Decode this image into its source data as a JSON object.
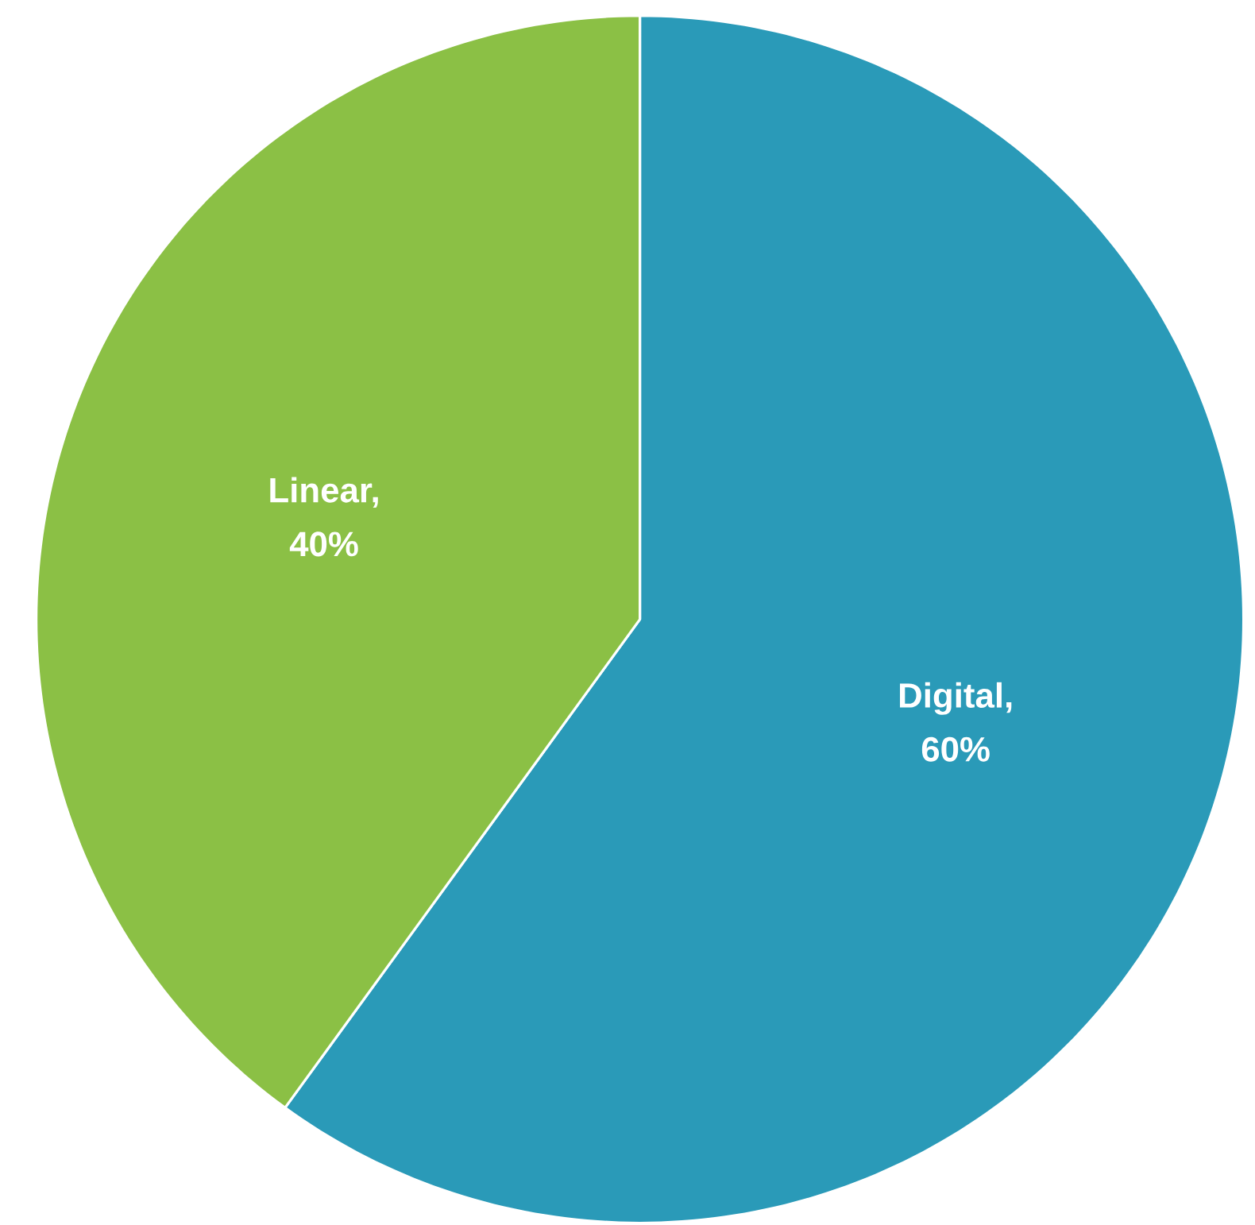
{
  "chart_data": {
    "type": "pie",
    "categories": [
      null,
      null
    ],
    "values": [
      60,
      40
    ],
    "colors": [
      "#2a9ab8",
      "#8bc045"
    ],
    "value_labels": [
      "Digital, 60%",
      "Linear, 40%"
    ]
  }
}
